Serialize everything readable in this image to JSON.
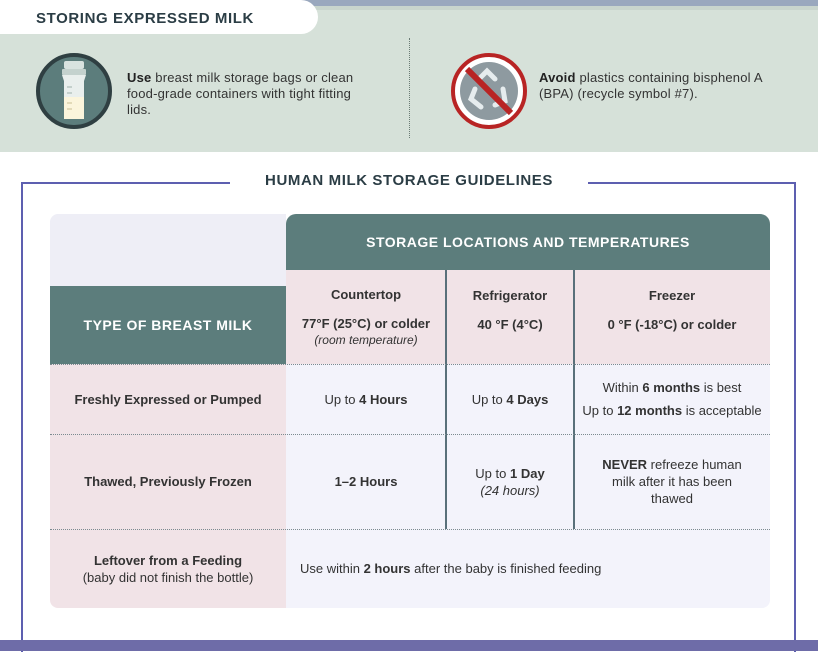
{
  "header": {
    "title": "STORING EXPRESSED MILK"
  },
  "tips": {
    "use": {
      "lead": "Use",
      "text": " breast milk storage bags or clean food-grade containers with tight fitting lids.",
      "icon": "milk-bottle-icon"
    },
    "avoid": {
      "lead": "Avoid",
      "text": " plastics containing bisphenol A (BPA) (recycle symbol #7).",
      "icon": "no-recycle-icon"
    }
  },
  "guidelines": {
    "title": "HUMAN MILK STORAGE GUIDELINES",
    "locations_header": "STORAGE LOCATIONS AND TEMPERATURES",
    "type_header": "TYPE OF BREAST MILK",
    "columns": [
      {
        "name": "Countertop",
        "temp": "77°F (25°C) or colder",
        "note": "(room temperature)"
      },
      {
        "name": "Refrigerator",
        "temp": "40 °F (4°C)",
        "note": ""
      },
      {
        "name": "Freezer",
        "temp": "0 °F (-18°C) or colder",
        "note": ""
      }
    ],
    "rows": [
      {
        "label": "Freshly Expressed or Pumped",
        "countertop": {
          "pre": "Up to ",
          "bold": "4 Hours"
        },
        "refrigerator": {
          "pre": "Up to ",
          "bold": "4 Days"
        },
        "freezer": {
          "line1_pre": "Within ",
          "line1_bold": "6 months",
          "line1_post": " is best",
          "line2_pre": "Up to ",
          "line2_bold": "12 months",
          "line2_post": " is acceptable"
        }
      },
      {
        "label": "Thawed, Previously Frozen",
        "countertop": {
          "bold": "1–2 Hours"
        },
        "refrigerator": {
          "pre": "Up to ",
          "bold": "1 Day",
          "note": "(24 hours)"
        },
        "freezer": {
          "bold": "NEVER",
          "post": " refreeze human milk after it has been thawed"
        }
      },
      {
        "label": "Leftover from a Feeding",
        "label_sub": "(baby did not finish the bottle)",
        "all": {
          "pre": "Use within ",
          "bold": "2 hours",
          "post": " after the baby is finished feeding"
        }
      }
    ]
  },
  "colors": {
    "top_band": "#d6e1d9",
    "header_teal": "#5c7d7c",
    "pink_cell": "#f1e3e7",
    "frame_blue": "#5d5fb0",
    "no_symbol_red": "#b82424"
  }
}
